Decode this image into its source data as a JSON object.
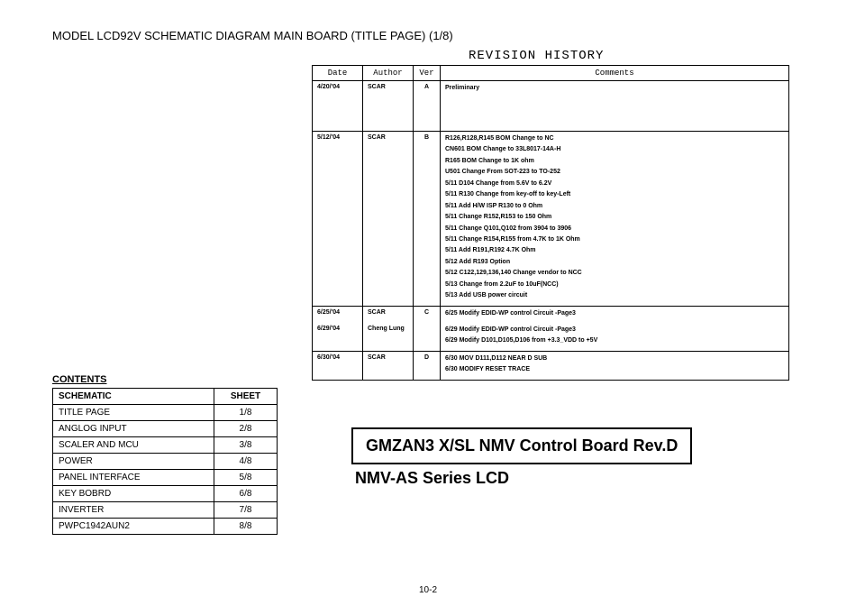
{
  "page_title": "MODEL LCD92V SCHEMATIC DIAGRAM MAIN BOARD (TITLE PAGE) (1/8)",
  "revision_history": {
    "title": "REVISION HISTORY",
    "headers": {
      "date": "Date",
      "author": "Author",
      "ver": "Ver",
      "comments": "Comments"
    },
    "rows": [
      {
        "date": "4/20/'04",
        "author": "SCAR",
        "ver": "A",
        "comments": [
          "Preliminary"
        ],
        "tall": true
      },
      {
        "date": "5/12/'04",
        "author": "SCAR",
        "ver": "B",
        "comments": [
          "R126,R128,R145 BOM Change to NC",
          "CN601 BOM Change to 33L8017-14A-H",
          "R165 BOM Change to 1K ohm",
          "U501 Change From SOT-223 to TO-252",
          "5/11 D104 Change from 5.6V to 6.2V",
          "5/11 R130 Change from key-off to key-Left",
          "5/11 Add H/W ISP R130 to 0 Ohm",
          "5/11 Change R152,R153 to 150 Ohm",
          "5/11 Change Q101,Q102 from 3904 to 3906",
          "5/11 Change R154,R155 from 4.7K to 1K Ohm",
          "5/11 Add R191,R192  4.7K Ohm",
          "5/12 Add R193 Option",
          "5/12 C122,129,136,140 Change vendor to NCC",
          "5/13 Change from 2.2uF to 10uF(NCC)",
          "5/13 Add USB power circuit"
        ]
      },
      {
        "date": "6/25/'04",
        "author": "SCAR",
        "ver": "C",
        "comments": [
          "6/25 Modify EDID-WP control Circuit -Page3"
        ],
        "continued": true
      },
      {
        "date": "6/29/'04",
        "author": "Cheng Lung",
        "ver": "",
        "comments": [
          "6/29 Modify EDID-WP control Circuit -Page3",
          "6/29 Modify D101,D105,D106 from +3.3_VDD to +5V"
        ],
        "sub": true
      },
      {
        "date": "6/30/'04",
        "author": "SCAR",
        "ver": "D",
        "comments": [
          "6/30 MOV D111,D112 NEAR D SUB",
          "6/30 MODIFY RESET TRACE"
        ]
      }
    ]
  },
  "contents": {
    "title": "CONTENTS",
    "headers": {
      "schematic": "SCHEMATIC",
      "sheet": "SHEET"
    },
    "rows": [
      {
        "name": "TITLE PAGE",
        "sheet": "1/8"
      },
      {
        "name": "ANGLOG INPUT",
        "sheet": "2/8"
      },
      {
        "name": "SCALER AND MCU",
        "sheet": "3/8"
      },
      {
        "name": "POWER",
        "sheet": "4/8"
      },
      {
        "name": "PANEL INTERFACE",
        "sheet": "5/8"
      },
      {
        "name": "KEY BOBRD",
        "sheet": "6/8"
      },
      {
        "name": "INVERTER",
        "sheet": "7/8"
      },
      {
        "name": "PWPC1942AUN2",
        "sheet": "8/8"
      }
    ]
  },
  "board_title": "GMZAN3 X/SL NMV Control Board  Rev.D",
  "subtitle": "NMV-AS Series LCD",
  "page_number": "10-2"
}
